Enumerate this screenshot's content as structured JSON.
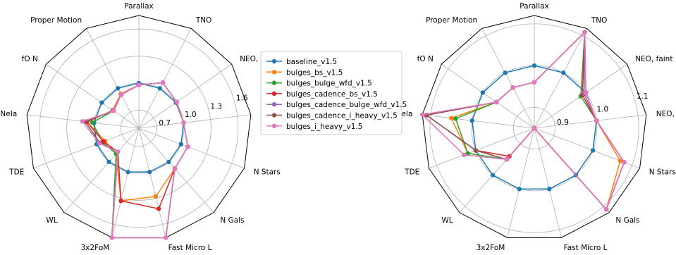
{
  "chart_data": [
    {
      "type": "radar",
      "axes": [
        "Parallax",
        "TNO",
        "NEO, faint",
        "NEO, bright",
        "N Stars",
        "N Gals",
        "Fast Micro L",
        "3x2FoM",
        "WL",
        "TDE",
        "SNeIa",
        "fO N",
        "Proper Motion"
      ],
      "axis_labels_shown": [
        "Parallax",
        "TNO",
        "NEO, faint",
        "NEO, bright",
        "N Stars",
        "N Gals",
        "Fast Micro L",
        "3x2FoM",
        "WL",
        "TDE",
        "SNeIa",
        "fO N",
        "Proper Motion"
      ],
      "rlim": [
        0.5,
        1.75
      ],
      "rticks": [
        {
          "value": 0.7,
          "label": "0.7"
        },
        {
          "value": 1.0,
          "label": "1.0"
        },
        {
          "value": 1.3,
          "label": "1.3"
        },
        {
          "value": 1.6,
          "label": "1.6"
        }
      ],
      "grid": true,
      "outer_frame": "polygon",
      "series": [
        {
          "name": "baseline_v1.5",
          "color": "#1f77b4",
          "values": [
            1.0,
            1.0,
            1.0,
            1.0,
            1.0,
            1.0,
            1.0,
            1.0,
            1.0,
            1.0,
            1.0,
            1.0,
            1.0
          ]
        },
        {
          "name": "bulges_bs_v1.5",
          "color": "#ff7f0e",
          "values": [
            0.98,
            1.07,
            1.01,
            1.0,
            1.08,
            1.1,
            1.28,
            1.33,
            0.88,
            0.9,
            1.08,
            0.85,
            0.93
          ]
        },
        {
          "name": "bulges_bulge_wfd_v1.5",
          "color": "#2ca02c",
          "values": [
            0.98,
            1.07,
            1.01,
            1.0,
            1.08,
            1.1,
            1.75,
            1.75,
            0.88,
            0.93,
            1.02,
            0.84,
            0.92
          ]
        },
        {
          "name": "bulges_cadence_bs_v1.5",
          "color": "#d62728",
          "values": [
            0.98,
            1.07,
            1.01,
            1.0,
            1.08,
            1.1,
            1.42,
            1.33,
            0.85,
            0.92,
            1.08,
            0.85,
            0.92
          ]
        },
        {
          "name": "bulges_cadence_bulge_wfd_v1.5",
          "color": "#9467bd",
          "values": [
            0.98,
            1.07,
            1.01,
            1.0,
            1.08,
            1.1,
            1.75,
            1.75,
            0.85,
            0.96,
            1.1,
            0.84,
            0.92
          ]
        },
        {
          "name": "bulges_cadence_i_heavy_v1.5",
          "color": "#8c564b",
          "values": [
            0.98,
            1.07,
            1.01,
            1.0,
            1.08,
            1.1,
            1.75,
            1.75,
            0.85,
            0.96,
            1.1,
            0.84,
            0.92
          ]
        },
        {
          "name": "bulges_i_heavy_v1.5",
          "color": "#e377c2",
          "values": [
            0.98,
            1.07,
            1.01,
            1.0,
            1.08,
            1.1,
            1.75,
            1.75,
            0.85,
            0.97,
            1.13,
            0.84,
            0.92
          ]
        }
      ]
    },
    {
      "type": "radar",
      "axes": [
        "Parallax",
        "TNO",
        "NEO, faint",
        "NEO, bright",
        "N Stars",
        "N Gals",
        "Fast Micro L",
        "3x2FoM",
        "WL",
        "TDE",
        "SNeIa",
        "fO N",
        "Proper Motion"
      ],
      "axis_labels_shown": [
        "Parallax",
        "TNO",
        "NEO, faint",
        "NEO, bright",
        "N Stars",
        "N Gals",
        "Fast Micro L",
        "3x2FoM",
        "WL",
        "TDE",
        "SNela",
        "fO N",
        "Proper Motion"
      ],
      "rlim": [
        0.85,
        1.12
      ],
      "rticks": [
        {
          "value": 0.9,
          "label": "0.9"
        },
        {
          "value": 1.0,
          "label": "1.0"
        },
        {
          "value": 1.1,
          "label": "1.1"
        }
      ],
      "grid": true,
      "outer_frame": "polygon",
      "series": [
        {
          "name": "baseline_v1.5",
          "color": "#1f77b4",
          "values": [
            1.0,
            1.0,
            1.0,
            1.0,
            1.0,
            1.0,
            1.0,
            1.0,
            1.0,
            1.0,
            1.0,
            1.0,
            1.0
          ]
        },
        {
          "name": "bulges_bs_v1.5",
          "color": "#ff7f0e",
          "values": [
            0.96,
            1.11,
            0.995,
            1.0,
            1.07,
            1.11,
            0.85,
            0.85,
            0.95,
            1.02,
            1.05,
            0.96,
            0.96
          ]
        },
        {
          "name": "bulges_bulge_wfd_v1.5",
          "color": "#2ca02c",
          "values": [
            0.96,
            1.11,
            0.985,
            1.0,
            1.08,
            1.11,
            0.85,
            0.85,
            0.95,
            1.02,
            1.04,
            0.96,
            0.96
          ]
        },
        {
          "name": "bulges_cadence_bs_v1.5",
          "color": "#d62728",
          "values": [
            0.96,
            1.11,
            0.99,
            1.0,
            1.08,
            1.11,
            0.85,
            0.85,
            0.94,
            1.0,
            1.11,
            0.96,
            0.96
          ]
        },
        {
          "name": "bulges_cadence_bulge_wfd_v1.5",
          "color": "#9467bd",
          "values": [
            0.96,
            1.11,
            0.995,
            1.0,
            1.08,
            1.11,
            0.85,
            0.85,
            0.95,
            1.0,
            1.11,
            0.96,
            0.96
          ]
        },
        {
          "name": "bulges_cadence_i_heavy_v1.5",
          "color": "#8c564b",
          "values": [
            0.96,
            1.11,
            1.0,
            1.0,
            1.08,
            1.11,
            0.85,
            0.85,
            0.95,
            1.0,
            1.11,
            0.96,
            0.96
          ]
        },
        {
          "name": "bulges_i_heavy_v1.5",
          "color": "#e377c2",
          "values": [
            0.96,
            1.11,
            1.0,
            1.0,
            1.08,
            1.11,
            0.85,
            0.85,
            0.95,
            1.03,
            1.12,
            0.96,
            0.96
          ]
        }
      ]
    }
  ],
  "legend": {
    "placement": "center",
    "entries": [
      "baseline_v1.5",
      "bulges_bs_v1.5",
      "bulges_bulge_wfd_v1.5",
      "bulges_cadence_bs_v1.5",
      "bulges_cadence_bulge_wfd_v1.5",
      "bulges_cadence_i_heavy_v1.5",
      "bulges_i_heavy_v1.5"
    ]
  }
}
